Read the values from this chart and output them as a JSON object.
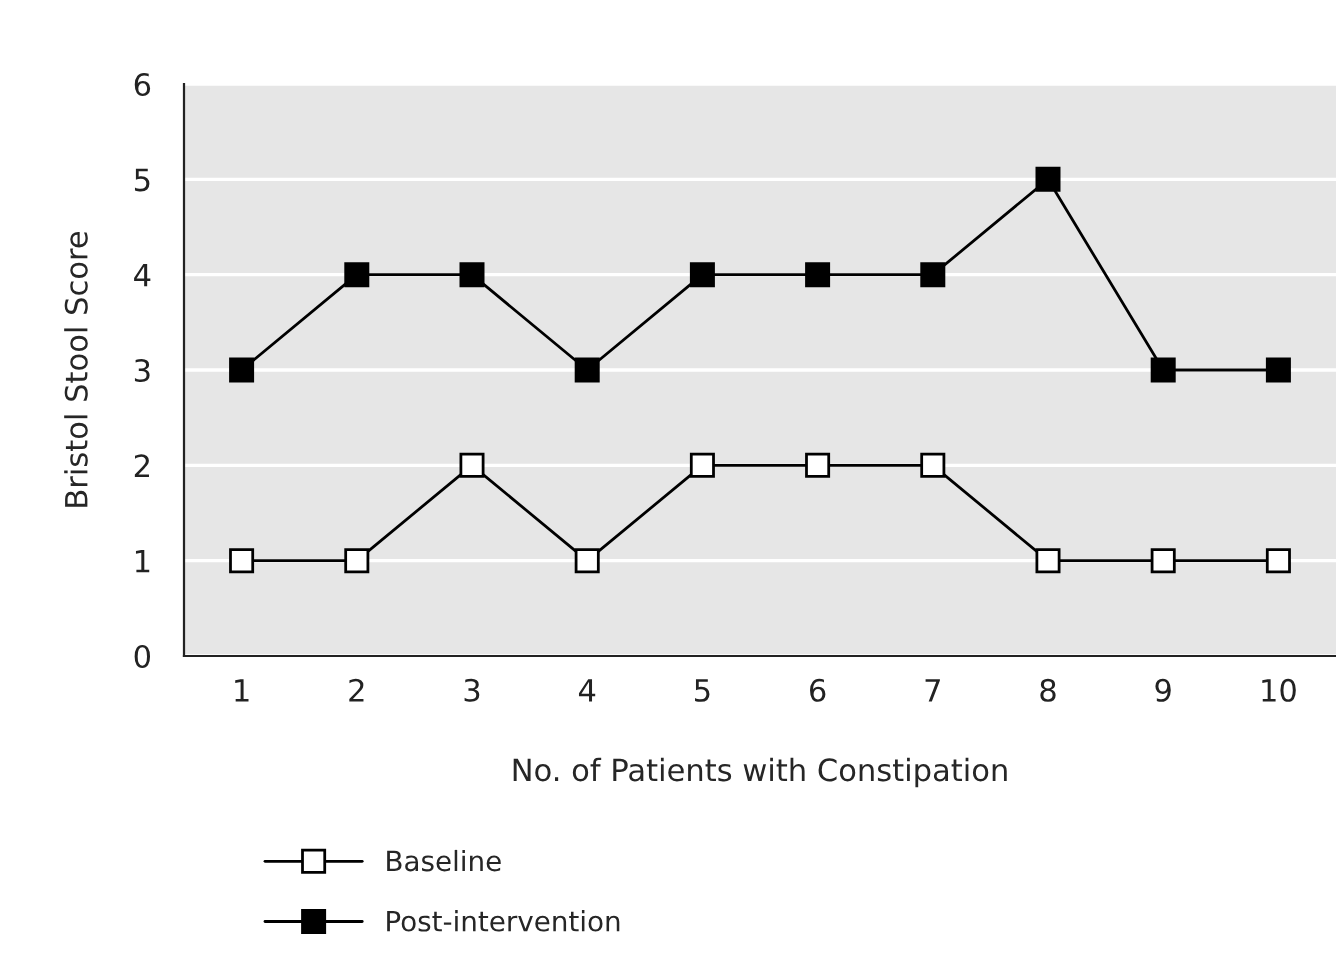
{
  "chart_data": {
    "type": "line",
    "xlabel": "No. of Patients with Constipation",
    "ylabel": "Bristol Stool Score",
    "categories": [
      "1",
      "2",
      "3",
      "4",
      "5",
      "6",
      "7",
      "8",
      "9",
      "10"
    ],
    "series": [
      {
        "name": "Baseline",
        "color": "#ffffff",
        "values": [
          1,
          1,
          2,
          1,
          2,
          2,
          2,
          1,
          1,
          1
        ]
      },
      {
        "name": "Post-intervention",
        "color": "#000000",
        "values": [
          3,
          4,
          4,
          3,
          4,
          4,
          4,
          5,
          3,
          3
        ]
      }
    ],
    "ylim": [
      0,
      6
    ],
    "yticks": [
      0,
      1,
      2,
      3,
      4,
      5,
      6
    ],
    "grid": "y",
    "legend": "bottom left",
    "marker": "square",
    "line_style": "solid"
  }
}
